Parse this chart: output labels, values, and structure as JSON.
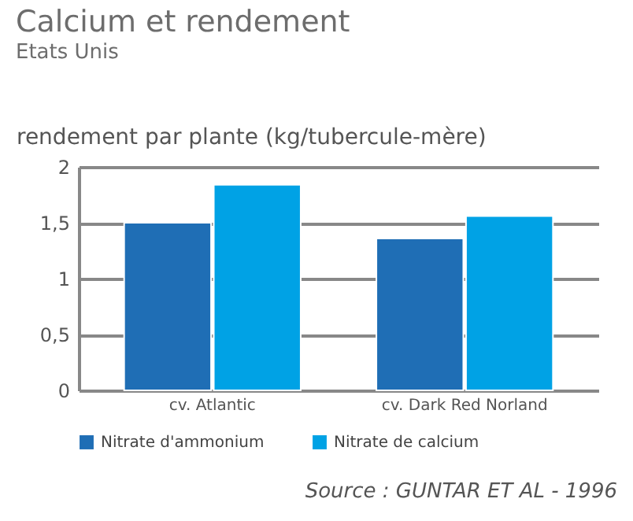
{
  "chart_data": {
    "type": "bar",
    "title": "Calcium et rendement",
    "subtitle": "Etats Unis",
    "ylabel": "rendement par plante (kg/tubercule-mère)",
    "categories": [
      "cv. Atlantic",
      "cv. Dark Red Norland"
    ],
    "series": [
      {
        "name": "Nitrate d'ammonium",
        "color": "#1f6eb5",
        "values": [
          1.5,
          1.36
        ]
      },
      {
        "name": "Nitrate de calcium",
        "color": "#00a2e5",
        "values": [
          1.84,
          1.56
        ]
      }
    ],
    "ylim": [
      0,
      2
    ],
    "yticks": [
      0,
      {
        "value": 0.5,
        "label": "0,5"
      },
      1,
      {
        "value": 1.5,
        "label": "1,5"
      },
      2
    ],
    "grid": "y",
    "legend": "bottom",
    "annotations": [
      "Source : GUNTAR ET AL - 1996"
    ]
  }
}
